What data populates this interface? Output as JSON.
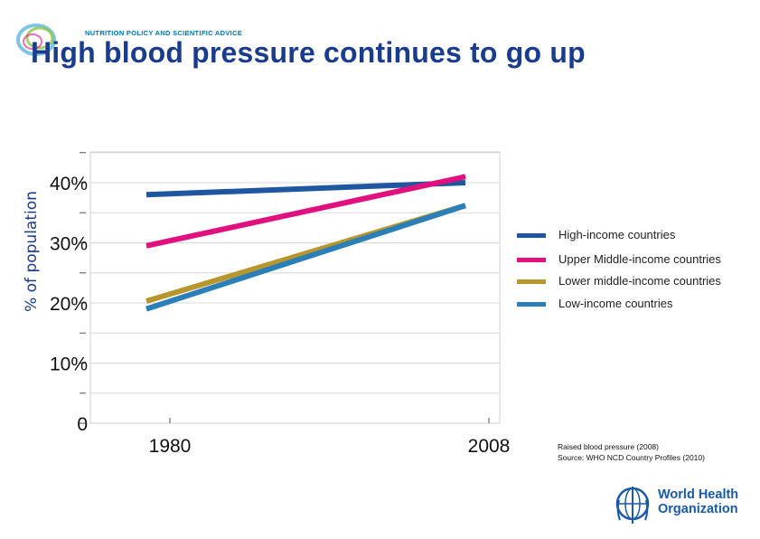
{
  "header": {
    "tagline": "NUTRITION POLICY AND SCIENTIFIC ADVICE",
    "title": "High blood pressure continues to go up"
  },
  "chart_data": {
    "type": "line",
    "title": "",
    "ylabel": "% of population",
    "xlabel": "",
    "x": [
      "1980",
      "2008"
    ],
    "ylim": [
      0,
      45
    ],
    "yticks": [
      0,
      10,
      20,
      30,
      40
    ],
    "ytick_labels": [
      "0",
      "10%",
      "20%",
      "30%",
      "40%"
    ],
    "grid": true,
    "legend_position": "right",
    "series": [
      {
        "name": "High-income countries",
        "values": [
          38,
          40
        ],
        "color": "#1f56a0"
      },
      {
        "name": "Upper Middle-income countries",
        "values": [
          29.5,
          41
        ],
        "color": "#e0117f"
      },
      {
        "name": "Lower middle-income countries",
        "values": [
          20.3,
          36.2
        ],
        "color": "#b8962e"
      },
      {
        "name": "Low-income countries",
        "values": [
          19,
          36.2
        ],
        "color": "#2b7fb8"
      }
    ]
  },
  "source": {
    "line1": "Raised blood pressure (2008)",
    "line2": "Source: WHO NCD Country Profiles (2010)"
  },
  "who_logo": {
    "line1": "World Health",
    "line2": "Organization"
  }
}
